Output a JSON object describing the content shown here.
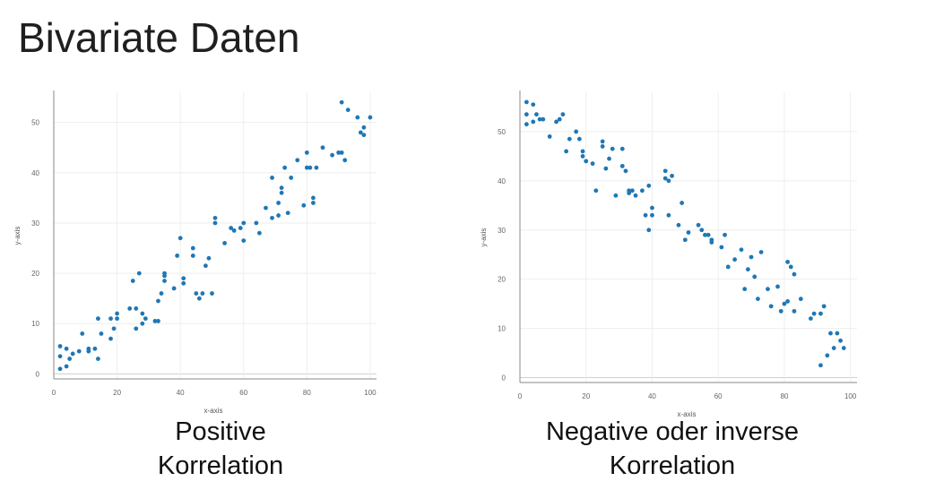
{
  "slide": {
    "title": "Bivariate Daten"
  },
  "captions": {
    "left": {
      "line1": "Positive",
      "line2": "Korrelation"
    },
    "right": {
      "line1": "Negative oder inverse",
      "line2": "Korrelation"
    }
  },
  "colors": {
    "point": "#1f77b4",
    "grid": "#eeeeee",
    "axis": "#888888"
  },
  "chart_data": [
    {
      "type": "scatter",
      "title": "",
      "xlabel": "x-axis",
      "ylabel": "y-axis",
      "xlim": [
        0,
        102
      ],
      "ylim": [
        -1,
        56
      ],
      "xticks": [
        0,
        20,
        40,
        60,
        80,
        100
      ],
      "yticks": [
        0,
        10,
        20,
        30,
        40,
        50
      ],
      "grid": true,
      "series": [
        {
          "x": [
            2,
            2,
            2,
            4,
            4,
            5,
            6,
            8,
            9,
            11,
            11,
            13,
            14,
            14,
            15,
            18,
            18,
            19,
            20,
            20,
            24,
            25,
            26,
            26,
            27,
            28,
            28,
            29,
            32,
            33,
            33,
            34,
            35,
            35,
            35,
            38,
            39,
            40,
            41,
            41,
            44,
            44,
            45,
            46,
            47,
            48,
            49,
            50,
            51,
            51,
            54,
            56,
            57,
            59,
            60,
            60,
            64,
            65,
            67,
            69,
            69,
            71,
            71,
            72,
            72,
            73,
            74,
            75,
            77,
            79,
            80,
            80,
            81,
            82,
            82,
            83,
            85,
            88,
            90,
            91,
            91,
            92,
            93,
            96,
            97,
            98,
            98,
            100
          ],
          "y": [
            5.5,
            3.5,
            1,
            1.5,
            5,
            3,
            4,
            4.5,
            8,
            5,
            4.5,
            5,
            11,
            3,
            8,
            11,
            7,
            9,
            12,
            11,
            13,
            18.5,
            13,
            9,
            20,
            10,
            12,
            11,
            10.5,
            10.5,
            14.5,
            16,
            20,
            18.5,
            19.5,
            17,
            23.5,
            27,
            19,
            18,
            25,
            23.5,
            16,
            15,
            16,
            21.5,
            23,
            16,
            31,
            30,
            26,
            29,
            28.5,
            29,
            30,
            26.5,
            30,
            28,
            33,
            39,
            31,
            34,
            31.5,
            37,
            36,
            41,
            32,
            39,
            42.5,
            33.5,
            41,
            44,
            41,
            35,
            34,
            41,
            45,
            43.5,
            44,
            54,
            44,
            42.5,
            52.5,
            51,
            48,
            49,
            47.5,
            51
          ]
        }
      ]
    },
    {
      "type": "scatter",
      "title": "",
      "xlabel": "x-axis",
      "ylabel": "y-axis",
      "xlim": [
        0,
        102
      ],
      "ylim": [
        -1,
        58
      ],
      "xticks": [
        0,
        20,
        40,
        60,
        80,
        100
      ],
      "yticks": [
        0,
        10,
        20,
        30,
        40,
        50
      ],
      "grid": true,
      "series": [
        {
          "x": [
            2,
            2,
            2,
            4,
            4,
            5,
            6,
            7,
            9,
            11,
            12,
            13,
            14,
            15,
            17,
            18,
            19,
            19,
            20,
            22,
            23,
            25,
            25,
            26,
            27,
            28,
            29,
            31,
            31,
            32,
            33,
            33,
            34,
            35,
            37,
            38,
            39,
            39,
            40,
            40,
            44,
            44,
            45,
            45,
            46,
            48,
            49,
            50,
            51,
            54,
            55,
            56,
            57,
            58,
            58,
            61,
            62,
            63,
            65,
            67,
            68,
            69,
            70,
            71,
            72,
            73,
            75,
            76,
            78,
            79,
            80,
            81,
            81,
            82,
            83,
            83,
            85,
            88,
            89,
            91,
            91,
            92,
            93,
            94,
            95,
            96,
            97,
            98
          ],
          "y": [
            56,
            53.5,
            51.5,
            55.5,
            52,
            53.5,
            52.5,
            52.5,
            49,
            52,
            52.5,
            53.5,
            46,
            48.5,
            50,
            48.5,
            45,
            46,
            44,
            43.5,
            38,
            48,
            47,
            42.5,
            44.5,
            46.5,
            37,
            46.5,
            43,
            42,
            38,
            37.5,
            38,
            37,
            38,
            33,
            39,
            30,
            33,
            34.5,
            42,
            40.5,
            40,
            33,
            41,
            31,
            35.5,
            28,
            29.5,
            31,
            30,
            29,
            29,
            28,
            27.5,
            26.5,
            29,
            22.5,
            24,
            26,
            18,
            22,
            24.5,
            20.5,
            16,
            25.5,
            18,
            14.5,
            18.5,
            13.5,
            15,
            15.5,
            23.5,
            22.5,
            21,
            13.5,
            16,
            12,
            13,
            13,
            2.5,
            14.5,
            4.5,
            9,
            6,
            9,
            7.5,
            6
          ]
        }
      ]
    }
  ]
}
